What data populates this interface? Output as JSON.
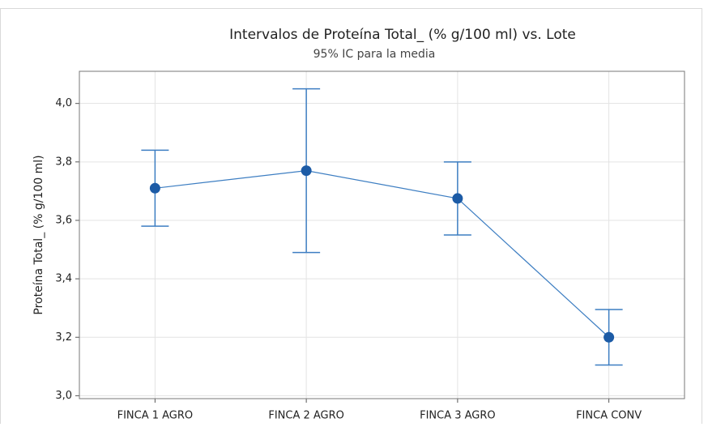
{
  "chart_data": {
    "type": "interval",
    "title": "Intervalos de Proteína Total_ (% g/100 ml) vs. Lote",
    "subtitle": "95% IC para la media",
    "y_label": "Proteína Total_ (% g/100 ml)",
    "categories": [
      "FINCA 1 AGRO",
      "FINCA 2 AGRO",
      "FINCA 3 AGRO",
      "FINCA CONV"
    ],
    "values": [
      3.71,
      3.77,
      3.675,
      3.2
    ],
    "errors": [
      0.13,
      0.28,
      0.125,
      0.095
    ],
    "color": "#1c5ba6",
    "line_color": "#3d7ec2",
    "ylim": [
      2.99,
      4.11
    ],
    "yticks": [
      {
        "value": 3.0,
        "label": "3,0"
      },
      {
        "value": 3.2,
        "label": "3,2"
      },
      {
        "value": 3.4,
        "label": "3,4"
      },
      {
        "value": 3.6,
        "label": "3,6"
      },
      {
        "value": 3.8,
        "label": "3,8"
      },
      {
        "value": 4.0,
        "label": "4,0"
      }
    ],
    "grid": true
  }
}
